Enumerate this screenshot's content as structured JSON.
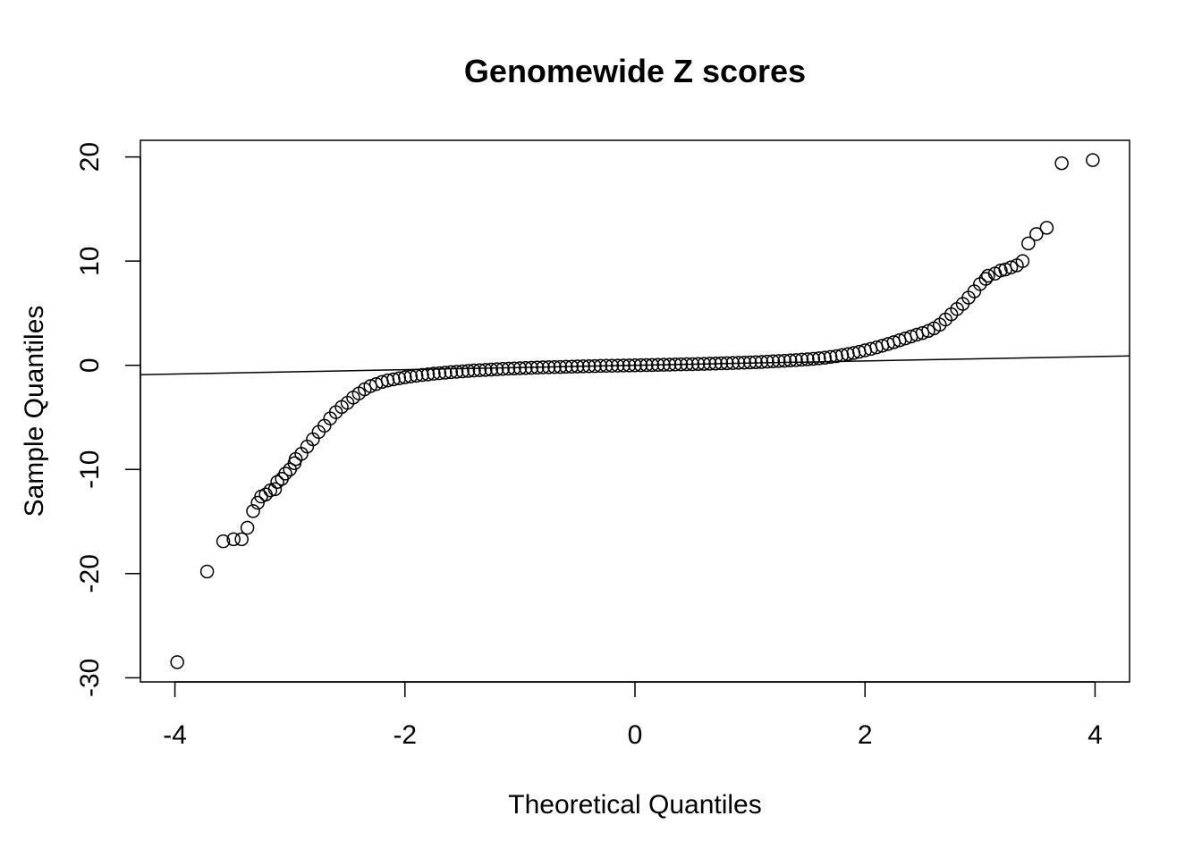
{
  "chart_data": {
    "type": "scatter",
    "title": "Genomewide Z scores",
    "x_label": "Theoretical Quantiles",
    "y_label": "Sample Quantiles",
    "xlim": [
      -4.3,
      4.3
    ],
    "ylim": [
      -30.4,
      21.6
    ],
    "xticks": [
      -4,
      -2,
      0,
      2,
      4
    ],
    "yticks": [
      -30,
      -20,
      -10,
      0,
      10,
      20
    ],
    "color": "#000000",
    "reference_line": {
      "intercept": 0,
      "slope": 0.21
    },
    "x": [
      -3.98,
      -3.72,
      -3.58,
      -3.49,
      -3.42,
      -3.37,
      -3.32,
      -3.28,
      -3.25,
      -3.21,
      -3.17,
      -3.13,
      -3.11,
      -3.07,
      -3.04,
      -3.0,
      -2.96,
      -2.95,
      -2.9,
      -2.85,
      -2.8,
      -2.75,
      -2.7,
      -2.65,
      -2.6,
      -2.55,
      -2.5,
      -2.45,
      -2.4,
      -2.35,
      -2.3,
      -2.25,
      -2.2,
      -2.15,
      -2.1,
      -2.05,
      -2.0,
      -1.95,
      -1.9,
      -1.85,
      -1.8,
      -1.75,
      -1.7,
      -1.65,
      -1.6,
      -1.55,
      -1.5,
      -1.45,
      -1.4,
      -1.35,
      -1.3,
      -1.25,
      -1.2,
      -1.15,
      -1.1,
      -1.05,
      -1.0,
      -0.95,
      -0.9,
      -0.85,
      -0.8,
      -0.75,
      -0.7,
      -0.65,
      -0.6,
      -0.55,
      -0.5,
      -0.45,
      -0.4,
      -0.35,
      -0.3,
      -0.25,
      -0.2,
      -0.15,
      -0.1,
      -0.05,
      0,
      0.05,
      0.1,
      0.15,
      0.2,
      0.25,
      0.3,
      0.35,
      0.4,
      0.45,
      0.5,
      0.55,
      0.6,
      0.65,
      0.7,
      0.75,
      0.8,
      0.85,
      0.9,
      0.95,
      1.0,
      1.05,
      1.1,
      1.15,
      1.2,
      1.25,
      1.3,
      1.35,
      1.4,
      1.45,
      1.5,
      1.55,
      1.6,
      1.65,
      1.7,
      1.75,
      1.8,
      1.85,
      1.9,
      1.95,
      2.0,
      2.05,
      2.1,
      2.15,
      2.2,
      2.25,
      2.3,
      2.35,
      2.4,
      2.45,
      2.5,
      2.55,
      2.6,
      2.65,
      2.7,
      2.75,
      2.8,
      2.85,
      2.9,
      2.95,
      3.0,
      3.05,
      3.07,
      3.13,
      3.18,
      3.22,
      3.27,
      3.32,
      3.37,
      3.42,
      3.49,
      3.58,
      3.71,
      3.98
    ],
    "y": [
      -28.5,
      -19.8,
      -16.9,
      -16.7,
      -16.7,
      -15.6,
      -14.0,
      -13.2,
      -12.6,
      -12.4,
      -12.0,
      -11.9,
      -11.2,
      -10.9,
      -10.4,
      -10.0,
      -9.4,
      -9.0,
      -8.5,
      -7.8,
      -7.1,
      -6.4,
      -5.8,
      -5.1,
      -4.5,
      -4.0,
      -3.6,
      -3.1,
      -2.7,
      -2.3,
      -2.0,
      -1.8,
      -1.6,
      -1.45,
      -1.35,
      -1.25,
      -1.15,
      -1.07,
      -1.0,
      -0.93,
      -0.87,
      -0.81,
      -0.76,
      -0.71,
      -0.66,
      -0.62,
      -0.58,
      -0.54,
      -0.5,
      -0.47,
      -0.44,
      -0.41,
      -0.38,
      -0.35,
      -0.32,
      -0.3,
      -0.28,
      -0.26,
      -0.24,
      -0.22,
      -0.2,
      -0.19,
      -0.17,
      -0.16,
      -0.14,
      -0.13,
      -0.11,
      -0.1,
      -0.09,
      -0.08,
      -0.06,
      -0.05,
      -0.04,
      -0.03,
      -0.02,
      -0.01,
      0,
      0.01,
      0.02,
      0.03,
      0.04,
      0.05,
      0.06,
      0.08,
      0.09,
      0.1,
      0.11,
      0.13,
      0.14,
      0.16,
      0.17,
      0.19,
      0.2,
      0.22,
      0.24,
      0.26,
      0.28,
      0.3,
      0.32,
      0.35,
      0.38,
      0.41,
      0.44,
      0.47,
      0.5,
      0.54,
      0.58,
      0.62,
      0.67,
      0.73,
      0.8,
      0.88,
      0.97,
      1.07,
      1.18,
      1.3,
      1.43,
      1.57,
      1.72,
      1.88,
      2.05,
      2.22,
      2.4,
      2.58,
      2.76,
      2.94,
      3.1,
      3.3,
      3.55,
      3.9,
      4.4,
      4.9,
      5.4,
      5.9,
      6.5,
      7.1,
      7.8,
      8.3,
      8.6,
      8.8,
      9.1,
      9.2,
      9.4,
      9.6,
      10.0,
      11.7,
      12.6,
      13.2,
      19.4,
      19.7
    ]
  }
}
